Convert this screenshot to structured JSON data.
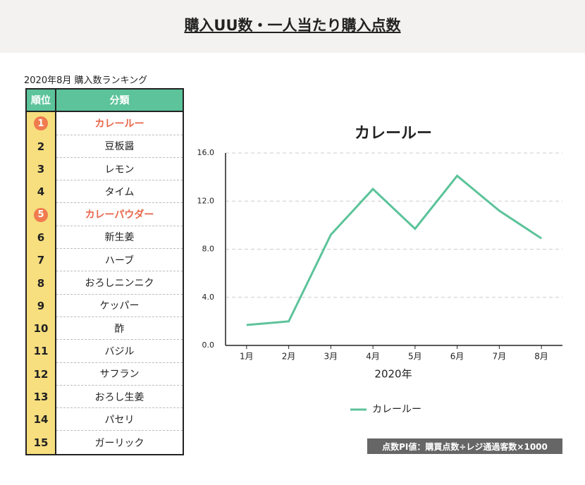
{
  "header": {
    "title": "購入UU数・一人当たり購入点数"
  },
  "ranking": {
    "caption": "2020年8月  購入数ランキング",
    "columns": [
      "順位",
      "分類"
    ],
    "rows": [
      {
        "rank": "1",
        "name": "カレールー",
        "highlight": true
      },
      {
        "rank": "2",
        "name": "豆板醤"
      },
      {
        "rank": "3",
        "name": "レモン"
      },
      {
        "rank": "4",
        "name": "タイム"
      },
      {
        "rank": "5",
        "name": "カレーパウダー",
        "highlight": true
      },
      {
        "rank": "6",
        "name": "新生姜"
      },
      {
        "rank": "7",
        "name": "ハーブ"
      },
      {
        "rank": "8",
        "name": "おろしニンニク"
      },
      {
        "rank": "9",
        "name": "ケッパー"
      },
      {
        "rank": "10",
        "name": "酢"
      },
      {
        "rank": "11",
        "name": "バジル"
      },
      {
        "rank": "12",
        "name": "サフラン"
      },
      {
        "rank": "13",
        "name": "おろし生姜"
      },
      {
        "rank": "14",
        "name": "パセリ"
      },
      {
        "rank": "15",
        "name": "ガーリック"
      }
    ]
  },
  "chart_data": {
    "type": "line",
    "title": "カレールー",
    "xlabel": "2020年",
    "categories": [
      "1月",
      "2月",
      "3月",
      "4月",
      "5月",
      "6月",
      "7月",
      "8月"
    ],
    "series": [
      {
        "name": "カレールー",
        "color": "#5cc39a",
        "values": [
          1.7,
          2.0,
          9.2,
          13.0,
          9.7,
          14.1,
          11.2,
          8.9
        ]
      }
    ],
    "ylim": [
      0,
      16
    ],
    "yticks": [
      {
        "value": 0,
        "label": "0.0"
      },
      {
        "value": 4,
        "label": "4.0"
      },
      {
        "value": 8,
        "label": "8.0"
      },
      {
        "value": 12,
        "label": "12.0"
      },
      {
        "value": 16,
        "label": "16.0"
      }
    ],
    "grid": true
  },
  "footnote": "点数PI値：購買点数÷レジ通過客数×1000"
}
